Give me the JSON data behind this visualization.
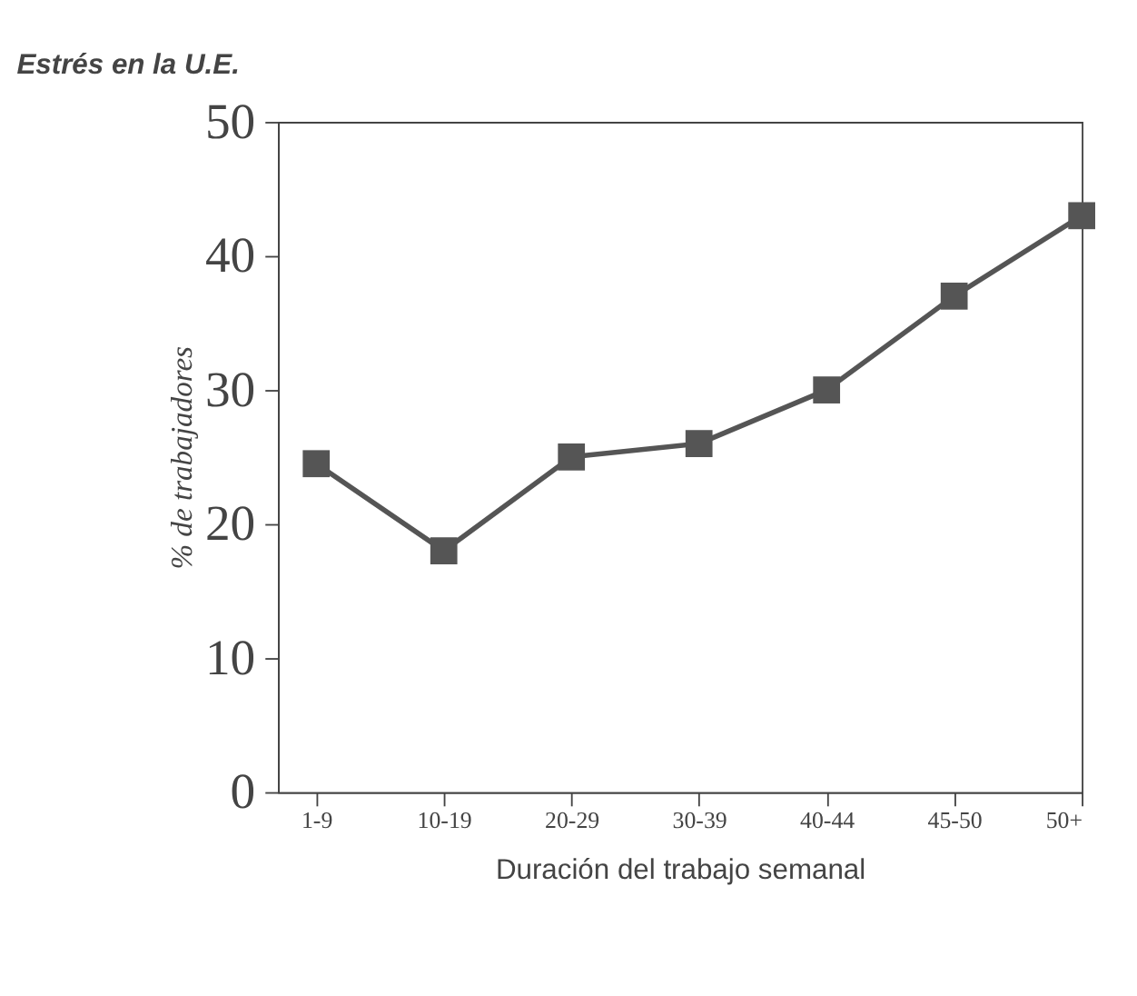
{
  "chart_data": {
    "type": "line",
    "title": "Estrés en la U.E.",
    "xlabel": "Duración del trabajo semanal",
    "ylabel": "% de trabajadores",
    "categories": [
      "1-9",
      "10-19",
      "20-29",
      "30-39",
      "40-44",
      "45-50",
      "50+"
    ],
    "series": [
      {
        "color": "#555555",
        "values": [
          24.5,
          18,
          25,
          26,
          30,
          37,
          43
        ]
      }
    ],
    "ylim": [
      0,
      50
    ],
    "yticks": [
      0,
      10,
      20,
      30,
      40,
      50
    ],
    "grid": false,
    "marker": "square",
    "line_style": "solid"
  }
}
